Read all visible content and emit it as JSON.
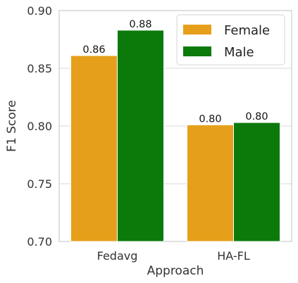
{
  "chart_data": {
    "type": "bar",
    "xlabel": "Approach",
    "ylabel": "F1 Score",
    "categories": [
      "Fedavg",
      "HA-FL"
    ],
    "series": [
      {
        "name": "Female",
        "values": [
          0.861,
          0.801
        ],
        "labels": [
          "0.86",
          "0.80"
        ],
        "color": "#E69F1A"
      },
      {
        "name": "Male",
        "values": [
          0.883,
          0.803
        ],
        "labels": [
          "0.88",
          "0.80"
        ],
        "color": "#0B7A0B"
      }
    ],
    "ylim": [
      0.7,
      0.9
    ],
    "yticks": [
      0.7,
      0.75,
      0.8,
      0.85,
      0.9
    ],
    "ytick_labels": [
      "0.70",
      "0.75",
      "0.80",
      "0.85",
      "0.90"
    ],
    "grid": "horizontal",
    "legend_position": "top-right"
  }
}
